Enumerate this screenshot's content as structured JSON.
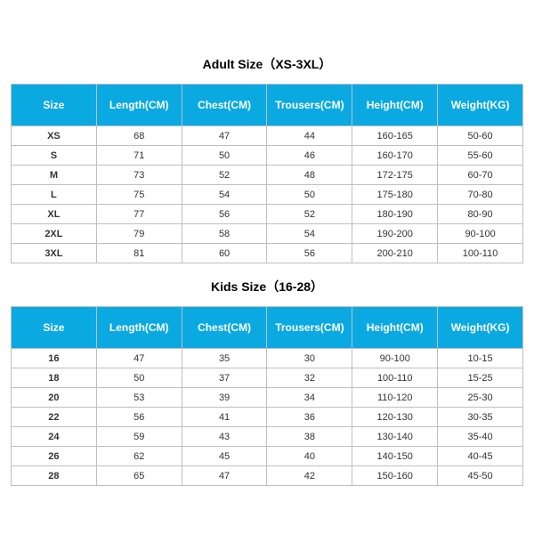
{
  "header_bg": "#0aa9e2",
  "header_fg": "#ffffff",
  "border_color": "#bfbfbf",
  "adult": {
    "title": "Adult Size（XS-3XL）",
    "columns": [
      "Size",
      "Length(CM)",
      "Chest(CM)",
      "Trousers(CM)",
      "Height(CM)",
      "Weight(KG)"
    ],
    "rows": [
      [
        "XS",
        "68",
        "47",
        "44",
        "160-165",
        "50-60"
      ],
      [
        "S",
        "71",
        "50",
        "46",
        "160-170",
        "55-60"
      ],
      [
        "M",
        "73",
        "52",
        "48",
        "172-175",
        "60-70"
      ],
      [
        "L",
        "75",
        "54",
        "50",
        "175-180",
        "70-80"
      ],
      [
        "XL",
        "77",
        "56",
        "52",
        "180-190",
        "80-90"
      ],
      [
        "2XL",
        "79",
        "58",
        "54",
        "190-200",
        "90-100"
      ],
      [
        "3XL",
        "81",
        "60",
        "56",
        "200-210",
        "100-110"
      ]
    ]
  },
  "kids": {
    "title": "Kids Size（16-28）",
    "columns": [
      "Size",
      "Length(CM)",
      "Chest(CM)",
      "Trousers(CM)",
      "Height(CM)",
      "Weight(KG)"
    ],
    "rows": [
      [
        "16",
        "47",
        "35",
        "30",
        "90-100",
        "10-15"
      ],
      [
        "18",
        "50",
        "37",
        "32",
        "100-110",
        "15-25"
      ],
      [
        "20",
        "53",
        "39",
        "34",
        "110-120",
        "25-30"
      ],
      [
        "22",
        "56",
        "41",
        "36",
        "120-130",
        "30-35"
      ],
      [
        "24",
        "59",
        "43",
        "38",
        "130-140",
        "35-40"
      ],
      [
        "26",
        "62",
        "45",
        "40",
        "140-150",
        "40-45"
      ],
      [
        "28",
        "65",
        "47",
        "42",
        "150-160",
        "45-50"
      ]
    ]
  }
}
